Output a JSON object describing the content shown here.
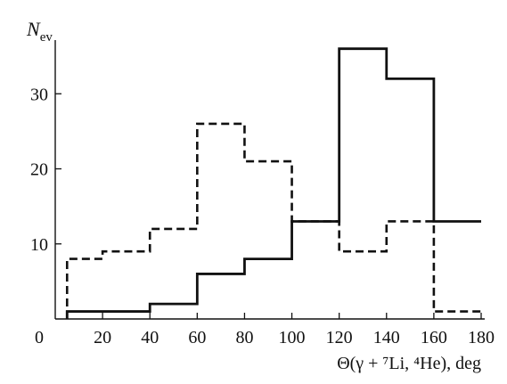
{
  "chart_data": {
    "type": "line",
    "step": true,
    "ylabel_main": "N",
    "ylabel_sub": "ev",
    "xlabel": "Θ(γ + ⁷Li, ⁴He), deg",
    "xlim": [
      0,
      180
    ],
    "ylim": [
      0,
      40
    ],
    "x_ticks": [
      0,
      20,
      40,
      60,
      80,
      100,
      120,
      140,
      160,
      180
    ],
    "y_ticks": [
      10,
      20,
      30
    ],
    "grid": false,
    "series": [
      {
        "style": "solid",
        "bin_edges": [
          5,
          40,
          60,
          80,
          100,
          120,
          140,
          160,
          180
        ],
        "values": [
          1,
          2,
          6,
          8,
          13,
          36,
          32,
          13
        ]
      },
      {
        "style": "dashed",
        "bin_edges": [
          5,
          20,
          40,
          60,
          80,
          100,
          120,
          140,
          160,
          180
        ],
        "values": [
          8,
          9,
          12,
          26,
          21,
          13,
          9,
          13,
          1
        ]
      }
    ]
  }
}
